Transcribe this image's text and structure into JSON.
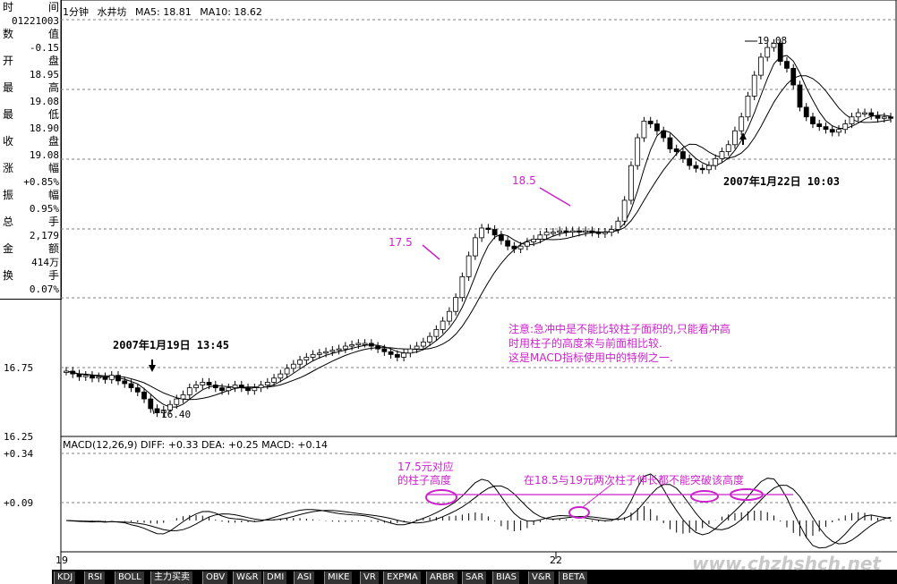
{
  "info_panel": {
    "rows": [
      {
        "label": "时",
        "label2": "间",
        "value": ""
      },
      {
        "label": "",
        "label2": "",
        "value": "01221003"
      },
      {
        "label": "数",
        "label2": "值",
        "value": ""
      },
      {
        "label": "",
        "label2": "",
        "value": "-0.15"
      },
      {
        "label": "开",
        "label2": "盘",
        "value": ""
      },
      {
        "label": "",
        "label2": "",
        "value": "18.95"
      },
      {
        "label": "最",
        "label2": "高",
        "value": ""
      },
      {
        "label": "",
        "label2": "",
        "value": "19.08"
      },
      {
        "label": "最",
        "label2": "低",
        "value": ""
      },
      {
        "label": "",
        "label2": "",
        "value": "18.90"
      },
      {
        "label": "收",
        "label2": "盘",
        "value": ""
      },
      {
        "label": "",
        "label2": "",
        "value": "19.08"
      },
      {
        "label": "涨",
        "label2": "幅",
        "value": ""
      },
      {
        "label": "",
        "label2": "",
        "value": "+0.85%"
      },
      {
        "label": "振",
        "label2": "幅",
        "value": ""
      },
      {
        "label": "",
        "label2": "",
        "value": "0.95%"
      },
      {
        "label": "总",
        "label2": "手",
        "value": ""
      },
      {
        "label": "",
        "label2": "",
        "value": "2,179"
      },
      {
        "label": "金",
        "label2": "额",
        "value": ""
      },
      {
        "label": "",
        "label2": "",
        "value": "414万"
      },
      {
        "label": "换",
        "label2": "手",
        "value": ""
      },
      {
        "label": "",
        "label2": "",
        "value": "0.07%"
      }
    ]
  },
  "chart_header": {
    "period": "1分钟",
    "stock": "水井坊",
    "ma5": "MA5: 18.81",
    "ma10": "MA10: 18.62"
  },
  "macd_header": "MACD(12,26,9) DIFF: +0.33 DEA: +0.25 MACD: +0.14",
  "y_axis_labels": [
    "16.75",
    "16.25",
    "+0.34",
    "+0.09"
  ],
  "x_axis_labels": [
    "19",
    "22"
  ],
  "annotations": {
    "peak_label": "19.08",
    "low_label": "16.40",
    "date1": "2007年1月19日 13:45",
    "date2": "2007年1月22日 10:03",
    "level_185": "18.5",
    "level_175": "17.5",
    "note_line1": "注意:急冲中是不能比较柱子面积的,只能看冲高",
    "note_line2": "时用柱子的高度来与前面相比较.",
    "note_line3": "这是MACD指标使用中的特例之一.",
    "macd_note1_line1": "17.5元对应",
    "macd_note1_line2": "的柱子高度",
    "macd_note2": "在18.5与19元两次柱子伸长都不能突破该高度"
  },
  "tabs": [
    "KDJ",
    "RSI",
    "BOLL",
    "主力买卖",
    "OBV",
    "W&R",
    "DMI",
    "ASI",
    "MIKE",
    "VR",
    "EXPMA",
    "ARBR",
    "SAR",
    "BIAS",
    "V&R",
    "BETA"
  ],
  "watermark": "www.chzhshch.net",
  "colors": {
    "annotation": "#cc22cc",
    "candle_up": "#ffffff",
    "candle_down": "#000000",
    "grid": "#7f7f7f"
  },
  "chart_data": {
    "type": "candlestick",
    "series": [
      {
        "name": "close",
        "values": [
          16.72,
          16.7,
          16.68,
          16.69,
          16.67,
          16.68,
          16.66,
          16.69,
          16.65,
          16.63,
          16.6,
          16.57,
          16.52,
          16.45,
          16.42,
          16.44,
          16.48,
          16.52,
          16.55,
          16.6,
          16.62,
          16.64,
          16.62,
          16.6,
          16.58,
          16.6,
          16.62,
          16.6,
          16.58,
          16.6,
          16.62,
          16.64,
          16.67,
          16.7,
          16.74,
          16.77,
          16.8,
          16.82,
          16.84,
          16.85,
          16.86,
          16.87,
          16.88,
          16.9,
          16.91,
          16.92,
          16.92,
          16.9,
          16.88,
          16.86,
          16.84,
          16.82,
          16.85,
          16.88,
          16.9,
          16.93,
          16.97,
          17.02,
          17.08,
          17.15,
          17.25,
          17.4,
          17.55,
          17.68,
          17.75,
          17.74,
          17.7,
          17.66,
          17.62,
          17.6,
          17.62,
          17.65,
          17.67,
          17.7,
          17.72,
          17.72,
          17.73,
          17.72,
          17.73,
          17.72,
          17.73,
          17.72,
          17.71,
          17.72,
          17.74,
          17.8,
          17.95,
          18.2,
          18.4,
          18.52,
          18.5,
          18.45,
          18.4,
          18.32,
          18.3,
          18.25,
          18.2,
          18.18,
          18.17,
          18.2,
          18.25,
          18.3,
          18.35,
          18.45,
          18.55,
          18.7,
          18.85,
          18.98,
          19.05,
          19.08,
          18.95,
          18.9,
          18.78,
          18.62,
          18.55,
          18.5,
          18.48,
          18.46,
          18.44,
          18.46,
          18.5,
          18.55,
          18.58,
          18.58,
          18.56,
          18.54,
          18.55,
          18.54
        ]
      },
      {
        "name": "MA5",
        "values": []
      },
      {
        "name": "MA10",
        "values": []
      }
    ],
    "macd": {
      "diff_last": 0.33,
      "dea_last": 0.25,
      "macd_last": 0.14
    }
  }
}
